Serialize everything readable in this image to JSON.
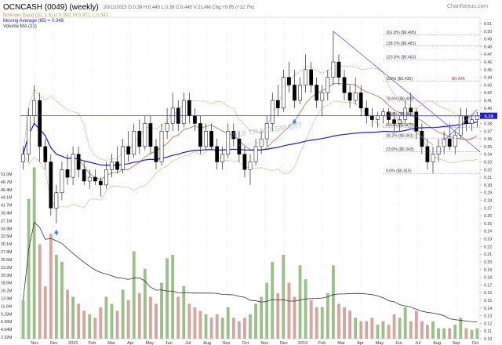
{
  "title": "OCNCASH (0049) (weekly)",
  "header_readout": "20/11/2015  O:0.39  H:0.445  L:0.39  C:0.445  V:21.4M  Chg:+0.05 (+12.7%)",
  "watermark": "ChartNexus.com",
  "logo_text": "2018 TRADESMART",
  "logo_subtext": "Central Trading Research",
  "legend": [
    {
      "text": "Bollinger Band (10, 1.5) U:0.399, M:0.371, L:0.342",
      "color": "#c8a060"
    },
    {
      "text": "Moving Average (65) = 0.348",
      "color": "#1a1adc"
    },
    {
      "text": "Volume MA (21)",
      "color": "#333333"
    }
  ],
  "price_axis_ticks": [
    "0.51",
    "0.50",
    "0.49",
    "0.48",
    "0.47",
    "0.46",
    "0.45",
    "0.44",
    "0.43",
    "0.42",
    "0.41",
    "0.40",
    "0.39",
    "0.38",
    "0.37",
    "0.36",
    "0.35",
    "0.34",
    "0.33",
    "0.32",
    "0.31",
    "0.30",
    "0.29",
    "0.28",
    "0.27",
    "0.26",
    "0.25",
    "0.24",
    "0.23",
    "0.22",
    "0.21",
    "0.20",
    "0.19",
    "0.18",
    "0.17",
    "0.16",
    "0.15",
    "0.14",
    "0.13",
    "0.12",
    "0.11",
    "0.10"
  ],
  "volume_axis_ticks": [
    "51.0M",
    "48.7M",
    "46.4M",
    "44.1M",
    "41.7M",
    "39.4M",
    "37.1M",
    "34.8M",
    "32.5M",
    "30.1M",
    "27.8M",
    "25.5M",
    "23.2M",
    "20.9M",
    "18.6M",
    "16.2M",
    "13.9M",
    "11.6M",
    "9.28M",
    "6.96M",
    "4.64M",
    "2.32M"
  ],
  "x_axis_ticks": [
    "Nov",
    "Dec",
    "2015",
    "Feb",
    "Mar",
    "Apr",
    "May",
    "Jun",
    "Jul",
    "Aug",
    "Sep",
    "Oct",
    "Nov",
    "Dec",
    "2016",
    "Feb",
    "Mar",
    "Apr",
    "May",
    "Jun",
    "Jul",
    "Aug",
    "Sep",
    "Oct"
  ],
  "fib_levels": [
    {
      "label": "161.8%  ($0.495)",
      "price": 0.495
    },
    {
      "label": "138.2%  ($0.481)",
      "price": 0.481
    },
    {
      "label": "123.6%  ($0.463)",
      "price": 0.463
    },
    {
      "label": "100%  ($0.435)",
      "price": 0.435
    },
    {
      "label": "78.6%  ($0.409)",
      "price": 0.409
    },
    {
      "label": "61.8%  ($0.389)",
      "price": 0.389
    },
    {
      "label": "50.0%  ($0.375)",
      "price": 0.375
    },
    {
      "label": "38.2%  ($0.361)",
      "price": 0.361
    },
    {
      "label": "23.6%  ($0.343)",
      "price": 0.343
    },
    {
      "label": "0.0%  ($0.315)",
      "price": 0.315
    }
  ],
  "price_marker": {
    "label": "$0.435",
    "price": 0.435
  },
  "last_price_tag": {
    "label": "0.39",
    "price": 0.39
  },
  "colors": {
    "up_candle": "#ffffff",
    "down_candle": "#000000",
    "bollinger": "#c8a060",
    "middle_band": "#b07040",
    "moving_average": "#1a1adc",
    "trendline": "#5a5ae0",
    "fib_line": "#9a70d0",
    "volume_up": "#9cc08a",
    "volume_down": "#d4a6a0",
    "volume_ma": "#333333",
    "marker": "#3a8ad8",
    "price_tag": "#1a1adc",
    "price_marker_text": "#e02020"
  },
  "chart_data": {
    "type": "candlestick",
    "title": "OCNCASH (0049) (weekly)",
    "period": "Nov 2014 - Oct 2016 (weekly)",
    "ylim": [
      0.1,
      0.51
    ],
    "volume_ylim": [
      0,
      52000000
    ],
    "candles": [
      [
        0.33,
        0.35,
        0.32,
        0.34,
        11000000
      ],
      [
        0.34,
        0.4,
        0.33,
        0.39,
        40000000
      ],
      [
        0.39,
        0.43,
        0.38,
        0.41,
        49000000
      ],
      [
        0.41,
        0.42,
        0.33,
        0.35,
        27000000
      ],
      [
        0.35,
        0.36,
        0.32,
        0.33,
        15000000
      ],
      [
        0.33,
        0.34,
        0.26,
        0.27,
        30000000
      ],
      [
        0.27,
        0.3,
        0.25,
        0.29,
        24000000
      ],
      [
        0.29,
        0.33,
        0.28,
        0.32,
        22000000
      ],
      [
        0.32,
        0.34,
        0.3,
        0.31,
        14000000
      ],
      [
        0.31,
        0.35,
        0.3,
        0.34,
        12000000
      ],
      [
        0.34,
        0.35,
        0.31,
        0.32,
        10000000
      ],
      [
        0.32,
        0.33,
        0.3,
        0.305,
        8000000
      ],
      [
        0.305,
        0.32,
        0.295,
        0.31,
        7000000
      ],
      [
        0.31,
        0.32,
        0.3,
        0.305,
        6000000
      ],
      [
        0.305,
        0.31,
        0.285,
        0.3,
        9000000
      ],
      [
        0.3,
        0.33,
        0.295,
        0.32,
        12000000
      ],
      [
        0.32,
        0.34,
        0.31,
        0.33,
        10000000
      ],
      [
        0.33,
        0.35,
        0.315,
        0.32,
        8000000
      ],
      [
        0.32,
        0.36,
        0.315,
        0.35,
        14000000
      ],
      [
        0.35,
        0.37,
        0.33,
        0.34,
        11000000
      ],
      [
        0.34,
        0.38,
        0.335,
        0.37,
        25000000
      ],
      [
        0.37,
        0.385,
        0.34,
        0.35,
        13000000
      ],
      [
        0.35,
        0.39,
        0.345,
        0.38,
        20000000
      ],
      [
        0.38,
        0.39,
        0.34,
        0.35,
        12000000
      ],
      [
        0.35,
        0.36,
        0.32,
        0.33,
        10000000
      ],
      [
        0.33,
        0.38,
        0.325,
        0.37,
        16000000
      ],
      [
        0.37,
        0.4,
        0.36,
        0.38,
        23000000
      ],
      [
        0.38,
        0.42,
        0.37,
        0.4,
        24000000
      ],
      [
        0.4,
        0.41,
        0.37,
        0.38,
        12000000
      ],
      [
        0.38,
        0.42,
        0.375,
        0.41,
        15000000
      ],
      [
        0.41,
        0.42,
        0.38,
        0.39,
        10000000
      ],
      [
        0.39,
        0.4,
        0.37,
        0.38,
        9000000
      ],
      [
        0.38,
        0.39,
        0.34,
        0.35,
        8000000
      ],
      [
        0.35,
        0.38,
        0.345,
        0.37,
        7000000
      ],
      [
        0.37,
        0.38,
        0.345,
        0.35,
        6000000
      ],
      [
        0.35,
        0.36,
        0.32,
        0.33,
        7000000
      ],
      [
        0.33,
        0.35,
        0.32,
        0.34,
        6000000
      ],
      [
        0.34,
        0.38,
        0.335,
        0.37,
        9000000
      ],
      [
        0.37,
        0.38,
        0.35,
        0.36,
        6000000
      ],
      [
        0.36,
        0.37,
        0.33,
        0.34,
        5000000
      ],
      [
        0.34,
        0.35,
        0.31,
        0.32,
        6000000
      ],
      [
        0.32,
        0.34,
        0.3,
        0.33,
        7000000
      ],
      [
        0.33,
        0.36,
        0.325,
        0.35,
        10000000
      ],
      [
        0.35,
        0.37,
        0.34,
        0.36,
        12000000
      ],
      [
        0.36,
        0.39,
        0.35,
        0.38,
        16000000
      ],
      [
        0.38,
        0.42,
        0.37,
        0.41,
        22000000
      ],
      [
        0.41,
        0.43,
        0.39,
        0.4,
        13000000
      ],
      [
        0.4,
        0.45,
        0.395,
        0.44,
        24000000
      ],
      [
        0.44,
        0.46,
        0.42,
        0.43,
        16000000
      ],
      [
        0.43,
        0.45,
        0.4,
        0.41,
        12000000
      ],
      [
        0.41,
        0.44,
        0.405,
        0.43,
        21000000
      ],
      [
        0.43,
        0.47,
        0.42,
        0.45,
        17000000
      ],
      [
        0.45,
        0.46,
        0.42,
        0.43,
        11000000
      ],
      [
        0.43,
        0.44,
        0.4,
        0.41,
        9000000
      ],
      [
        0.41,
        0.43,
        0.39,
        0.42,
        9000000
      ],
      [
        0.42,
        0.45,
        0.41,
        0.44,
        13000000
      ],
      [
        0.44,
        0.5,
        0.43,
        0.46,
        21000000
      ],
      [
        0.46,
        0.47,
        0.43,
        0.44,
        10000000
      ],
      [
        0.44,
        0.45,
        0.41,
        0.42,
        9000000
      ],
      [
        0.42,
        0.43,
        0.4,
        0.41,
        8000000
      ],
      [
        0.41,
        0.44,
        0.405,
        0.42,
        6000000
      ],
      [
        0.42,
        0.43,
        0.39,
        0.4,
        5000000
      ],
      [
        0.4,
        0.41,
        0.38,
        0.39,
        5000000
      ],
      [
        0.39,
        0.4,
        0.375,
        0.385,
        6000000
      ],
      [
        0.385,
        0.395,
        0.375,
        0.39,
        4000000
      ],
      [
        0.39,
        0.4,
        0.38,
        0.395,
        5000000
      ],
      [
        0.395,
        0.4,
        0.38,
        0.385,
        4000000
      ],
      [
        0.385,
        0.395,
        0.37,
        0.38,
        7000000
      ],
      [
        0.38,
        0.39,
        0.37,
        0.385,
        6000000
      ],
      [
        0.385,
        0.41,
        0.38,
        0.4,
        9000000
      ],
      [
        0.4,
        0.42,
        0.39,
        0.395,
        5000000
      ],
      [
        0.395,
        0.4,
        0.36,
        0.37,
        8000000
      ],
      [
        0.37,
        0.38,
        0.34,
        0.35,
        5000000
      ],
      [
        0.35,
        0.36,
        0.32,
        0.33,
        4000000
      ],
      [
        0.33,
        0.35,
        0.315,
        0.34,
        5000000
      ],
      [
        0.34,
        0.36,
        0.33,
        0.35,
        3000000
      ],
      [
        0.35,
        0.37,
        0.34,
        0.36,
        3000000
      ],
      [
        0.36,
        0.38,
        0.345,
        0.35,
        3000000
      ],
      [
        0.35,
        0.37,
        0.34,
        0.365,
        4000000
      ],
      [
        0.365,
        0.4,
        0.36,
        0.39,
        6000000
      ],
      [
        0.39,
        0.4,
        0.37,
        0.38,
        3000000
      ],
      [
        0.38,
        0.39,
        0.37,
        0.385,
        2500000
      ],
      [
        0.385,
        0.395,
        0.375,
        0.39,
        3000000
      ]
    ]
  }
}
